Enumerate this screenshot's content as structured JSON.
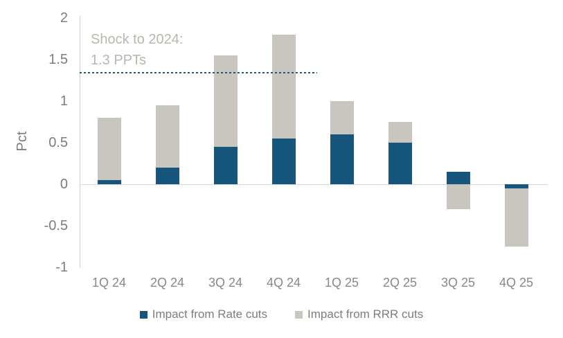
{
  "chart_data": {
    "type": "bar",
    "stacked": true,
    "title": "",
    "ylabel": "Pct",
    "ylim": [
      -1,
      2
    ],
    "ytick_values": [
      2,
      1.5,
      1,
      0.5,
      0,
      -0.5,
      -1
    ],
    "ytick_labels": [
      "2",
      "1.5",
      "1",
      "0.5",
      "0",
      "-0.5",
      "-1"
    ],
    "categories": [
      "1Q 24",
      "2Q 24",
      "3Q 24",
      "4Q 24",
      "1Q 25",
      "2Q 25",
      "3Q 25",
      "4Q 25"
    ],
    "series": [
      {
        "name": "Impact from Rate cuts",
        "color": "#16567d",
        "values": [
          0.05,
          0.2,
          0.45,
          0.55,
          0.6,
          0.5,
          0.15,
          -0.05
        ]
      },
      {
        "name": "Impact from RRR cuts",
        "color": "#c9c6c0",
        "values": [
          0.75,
          0.75,
          1.1,
          1.25,
          0.4,
          0.25,
          -0.3,
          -0.7
        ]
      }
    ],
    "annotation": {
      "line1": "Shock to 2024:",
      "line2": "1.3 PPTs",
      "line_value": 1.35
    },
    "legend_position": "bottom",
    "grid": false
  },
  "colors": {
    "rate_cuts_blue": "#16567d",
    "rrr_cuts_gray": "#c9c6c0",
    "annotation_text": "#b9b6af",
    "axis_text": "#7f7c7a",
    "axis_line": "#cfcfcf",
    "dotted_line": "#1f5878"
  }
}
